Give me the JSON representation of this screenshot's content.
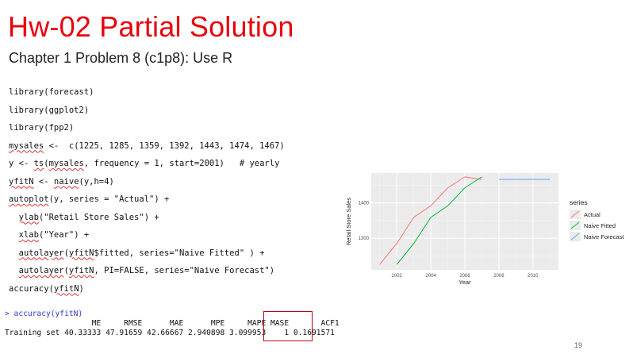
{
  "slide": {
    "title": "Hw-02 Partial Solution",
    "subtitle": "Chapter 1 Problem 8 (c1p8): Use R",
    "page_number": "19"
  },
  "code_lines": [
    "library(forecast)",
    "library(ggplot2)",
    "library(fpp2)",
    "mysales <-  c(1225, 1285, 1359, 1392, 1443, 1474, 1467)",
    "y <- ts(mysales, frequency = 1, start=2001)   # yearly",
    "yfitN <- naive(y,h=4)",
    "autoplot(y, series = \"Actual\") +",
    "  ylab(\"Retail Store Sales\") +",
    "  xlab(\"Year\") +",
    "  autolayer(yfitN$fitted, series=\"Naive Fitted\" ) +",
    "  autolayer(yfitN, PI=FALSE, series=\"Naive Forecast\")",
    "accuracy(yfitN)"
  ],
  "console": {
    "command": "> accuracy(yfitN)",
    "header": "                   ME     RMSE      MAE      MPE     MAPE MASE       ACF1",
    "row": "Training set 40.33333 47.91659 42.66667 2.940898 3.099953    1 0.1691571"
  },
  "chart_data": {
    "type": "line",
    "xlabel": "Year",
    "ylabel": "Retail Store Sales",
    "xticks": [
      2002,
      2004,
      2006,
      2008,
      2010
    ],
    "yticks": [
      1300,
      1400
    ],
    "xlim": [
      2000.5,
      2011.5
    ],
    "ylim": [
      1210,
      1485
    ],
    "grid": true,
    "legend": {
      "title": "series",
      "placement": "right"
    },
    "series": [
      {
        "name": "Actual",
        "color": "#f8766d",
        "x": [
          2001,
          2002,
          2003,
          2004,
          2005,
          2006,
          2007
        ],
        "values": [
          1225,
          1285,
          1359,
          1392,
          1443,
          1474,
          1467
        ]
      },
      {
        "name": "Naive Fitted",
        "color": "#00ba38",
        "x": [
          2002,
          2003,
          2004,
          2005,
          2006,
          2007
        ],
        "values": [
          1225,
          1285,
          1359,
          1392,
          1443,
          1474
        ]
      },
      {
        "name": "Naive Forecast",
        "color": "#619cff",
        "x": [
          2008,
          2009,
          2010,
          2011
        ],
        "values": [
          1467,
          1467,
          1467,
          1467
        ]
      }
    ]
  }
}
